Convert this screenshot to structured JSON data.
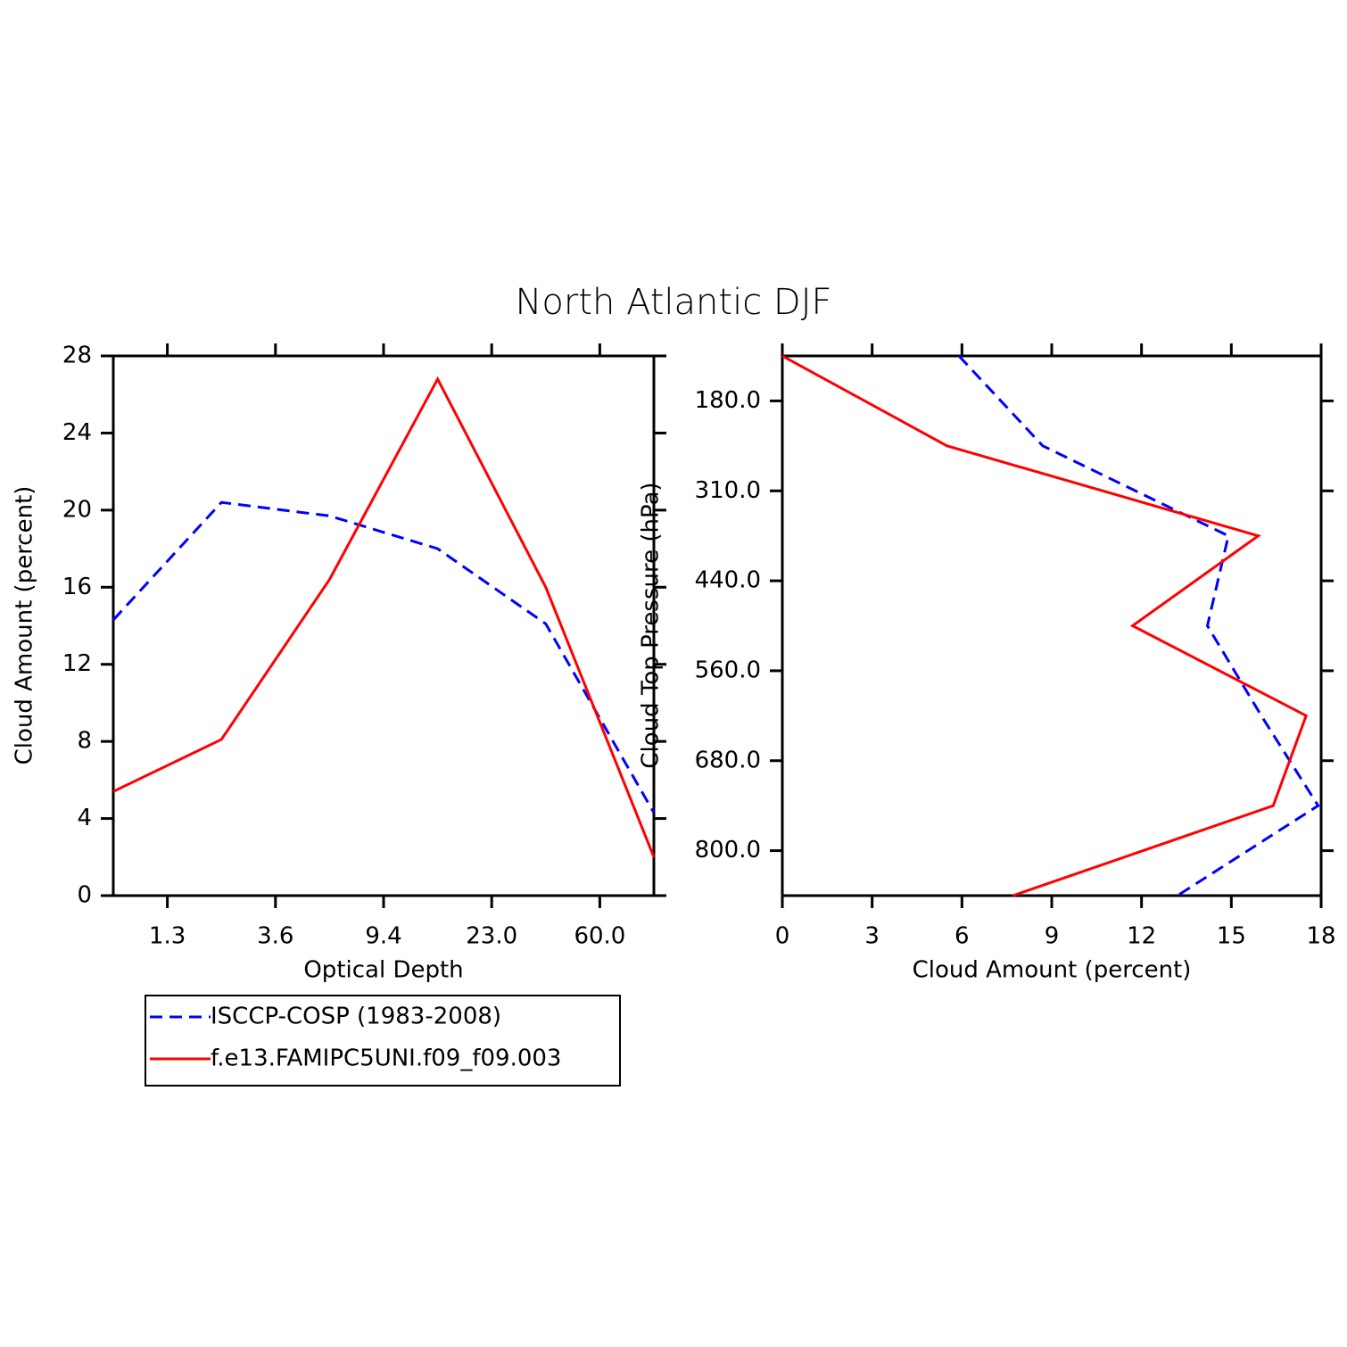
{
  "title": "North Atlantic DJF",
  "chart_data": [
    {
      "type": "line",
      "orientation": "vertical",
      "xlabel": "Optical Depth",
      "ylabel": "Cloud Amount (percent)",
      "x": [
        0,
        1,
        2,
        3,
        4,
        5
      ],
      "xlim": [
        0,
        5
      ],
      "xticks": [
        {
          "value": 0.5,
          "label": "1.3"
        },
        {
          "value": 1.5,
          "label": "3.6"
        },
        {
          "value": 2.5,
          "label": "9.4"
        },
        {
          "value": 3.5,
          "label": "23.0"
        },
        {
          "value": 4.5,
          "label": "60.0"
        }
      ],
      "ylim": [
        0,
        28
      ],
      "yticks": [
        0,
        4,
        8,
        12,
        16,
        20,
        24,
        28
      ],
      "legend": "below",
      "series": [
        {
          "name": "ISCCP-COSP (1983-2008)",
          "color": "#0000ff",
          "dashed": true,
          "values": [
            14.3,
            20.4,
            19.7,
            18.0,
            14.1,
            4.3
          ]
        },
        {
          "name": "f.e13.FAMIPC5UNI.f09_f09.003",
          "color": "#ff0000",
          "dashed": false,
          "values": [
            5.4,
            8.1,
            16.4,
            26.8,
            16.0,
            2.0
          ]
        }
      ]
    },
    {
      "type": "line",
      "orientation": "horizontal",
      "xlabel": "Cloud Amount (percent)",
      "ylabel": "Cloud Top Pressure (hPa)",
      "xlim": [
        0,
        18
      ],
      "xticks": [
        0,
        3,
        6,
        9,
        12,
        15,
        18
      ],
      "y": [
        0,
        1,
        2,
        3,
        4,
        5,
        6
      ],
      "ylim": [
        6,
        0
      ],
      "yticks": [
        {
          "value": 0.5,
          "label": "180.0"
        },
        {
          "value": 1.5,
          "label": "310.0"
        },
        {
          "value": 2.5,
          "label": "440.0"
        },
        {
          "value": 3.5,
          "label": "560.0"
        },
        {
          "value": 4.5,
          "label": "680.0"
        },
        {
          "value": 5.5,
          "label": "800.0"
        }
      ],
      "series": [
        {
          "color": "#0000ff",
          "dashed": true,
          "values": [
            5.9,
            8.7,
            14.9,
            14.2,
            16.0,
            17.9,
            13.2
          ]
        },
        {
          "color": "#ff0000",
          "dashed": false,
          "values": [
            0,
            5.5,
            15.9,
            11.7,
            17.5,
            16.4,
            7.7
          ]
        }
      ]
    }
  ]
}
